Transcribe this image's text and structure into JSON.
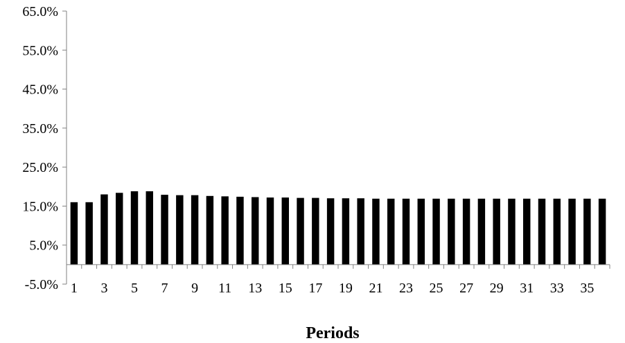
{
  "chart_data": {
    "type": "bar",
    "title": "",
    "xlabel": "Periods",
    "ylabel": "",
    "ylim": [
      -5,
      65
    ],
    "yticks": [
      -5,
      5,
      15,
      25,
      35,
      45,
      55,
      65
    ],
    "ytick_labels": [
      "-5.0%",
      "5.0%",
      "15.0%",
      "25.0%",
      "35.0%",
      "45.0%",
      "55.0%",
      "65.0%"
    ],
    "categories": [
      1,
      2,
      3,
      4,
      5,
      6,
      7,
      8,
      9,
      10,
      11,
      12,
      13,
      14,
      15,
      16,
      17,
      18,
      19,
      20,
      21,
      22,
      23,
      24,
      25,
      26,
      27,
      28,
      29,
      30,
      31,
      32,
      33,
      34,
      35,
      36
    ],
    "xtick_labels": [
      "1",
      "3",
      "5",
      "7",
      "9",
      "11",
      "13",
      "15",
      "17",
      "19",
      "21",
      "23",
      "25",
      "27",
      "29",
      "31",
      "33",
      "35"
    ],
    "values": [
      16.0,
      16.0,
      18.0,
      18.4,
      18.8,
      18.8,
      17.9,
      17.8,
      17.8,
      17.6,
      17.5,
      17.4,
      17.3,
      17.2,
      17.2,
      17.1,
      17.1,
      17.0,
      17.0,
      17.0,
      16.9,
      16.9,
      16.9,
      16.9,
      16.9,
      16.9,
      16.9,
      16.9,
      16.9,
      16.9,
      16.9,
      16.9,
      16.9,
      16.9,
      16.9,
      16.9
    ],
    "bar_color": "#000000",
    "grid": false,
    "legend": "none"
  }
}
